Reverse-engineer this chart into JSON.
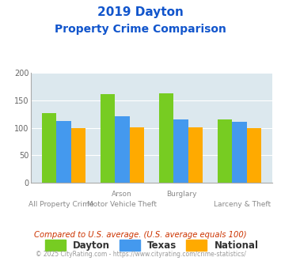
{
  "title_line1": "2019 Dayton",
  "title_line2": "Property Crime Comparison",
  "cat_labels_top": [
    "",
    "Arson",
    "Burglary",
    ""
  ],
  "cat_labels_bot": [
    "All Property Crime",
    "Motor Vehicle Theft",
    "",
    "Larceny & Theft"
  ],
  "dayton": [
    127,
    162,
    163,
    116
  ],
  "texas": [
    113,
    121,
    115,
    111
  ],
  "national": [
    100,
    101,
    101,
    100
  ],
  "dayton_color": "#77cc22",
  "texas_color": "#4499ee",
  "national_color": "#ffaa00",
  "ylim": [
    0,
    200
  ],
  "yticks": [
    0,
    50,
    100,
    150,
    200
  ],
  "bg_color": "#dce8ee",
  "legend_labels": [
    "Dayton",
    "Texas",
    "National"
  ],
  "footnote1": "Compared to U.S. average. (U.S. average equals 100)",
  "footnote2": "© 2025 CityRating.com - https://www.cityrating.com/crime-statistics/",
  "title_color": "#1155cc",
  "footnote1_color": "#cc3300",
  "footnote2_color": "#999999",
  "label_color": "#888888"
}
